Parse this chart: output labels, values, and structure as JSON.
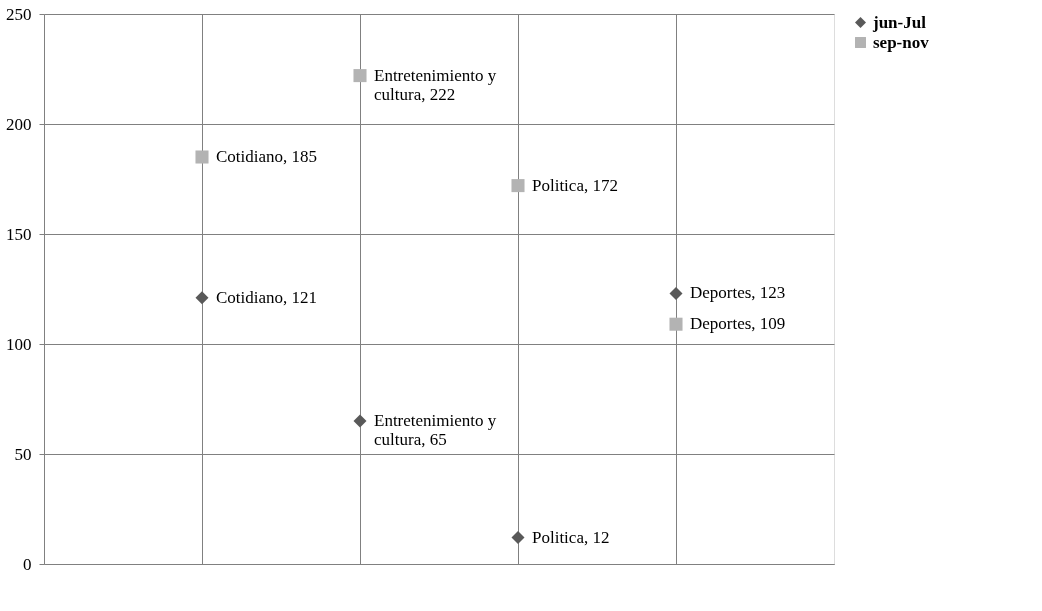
{
  "chart_data": {
    "type": "scatter",
    "categories": [
      null,
      null,
      null,
      null
    ],
    "series": [
      {
        "name": "jun-Jul",
        "color": "#595959",
        "marker": "diamond",
        "values": [
          121,
          65,
          12,
          123
        ],
        "value_labels": [
          "Cotidiano, 121",
          "Entretenimiento y cultura, 65",
          "Politica, 12",
          "Deportes, 123"
        ]
      },
      {
        "name": "sep-nov",
        "color": "#b3b3b3",
        "marker": "square",
        "values": [
          185,
          222,
          172,
          109
        ],
        "value_labels": [
          "Cotidiano, 185",
          "Entretenimiento y cultura, 222",
          "Politica, 172",
          "Deportes, 109"
        ]
      }
    ],
    "ylim": [
      0,
      250
    ],
    "yticks": [
      0,
      50,
      100,
      150,
      200,
      250
    ],
    "grid": true,
    "legend": "right"
  }
}
